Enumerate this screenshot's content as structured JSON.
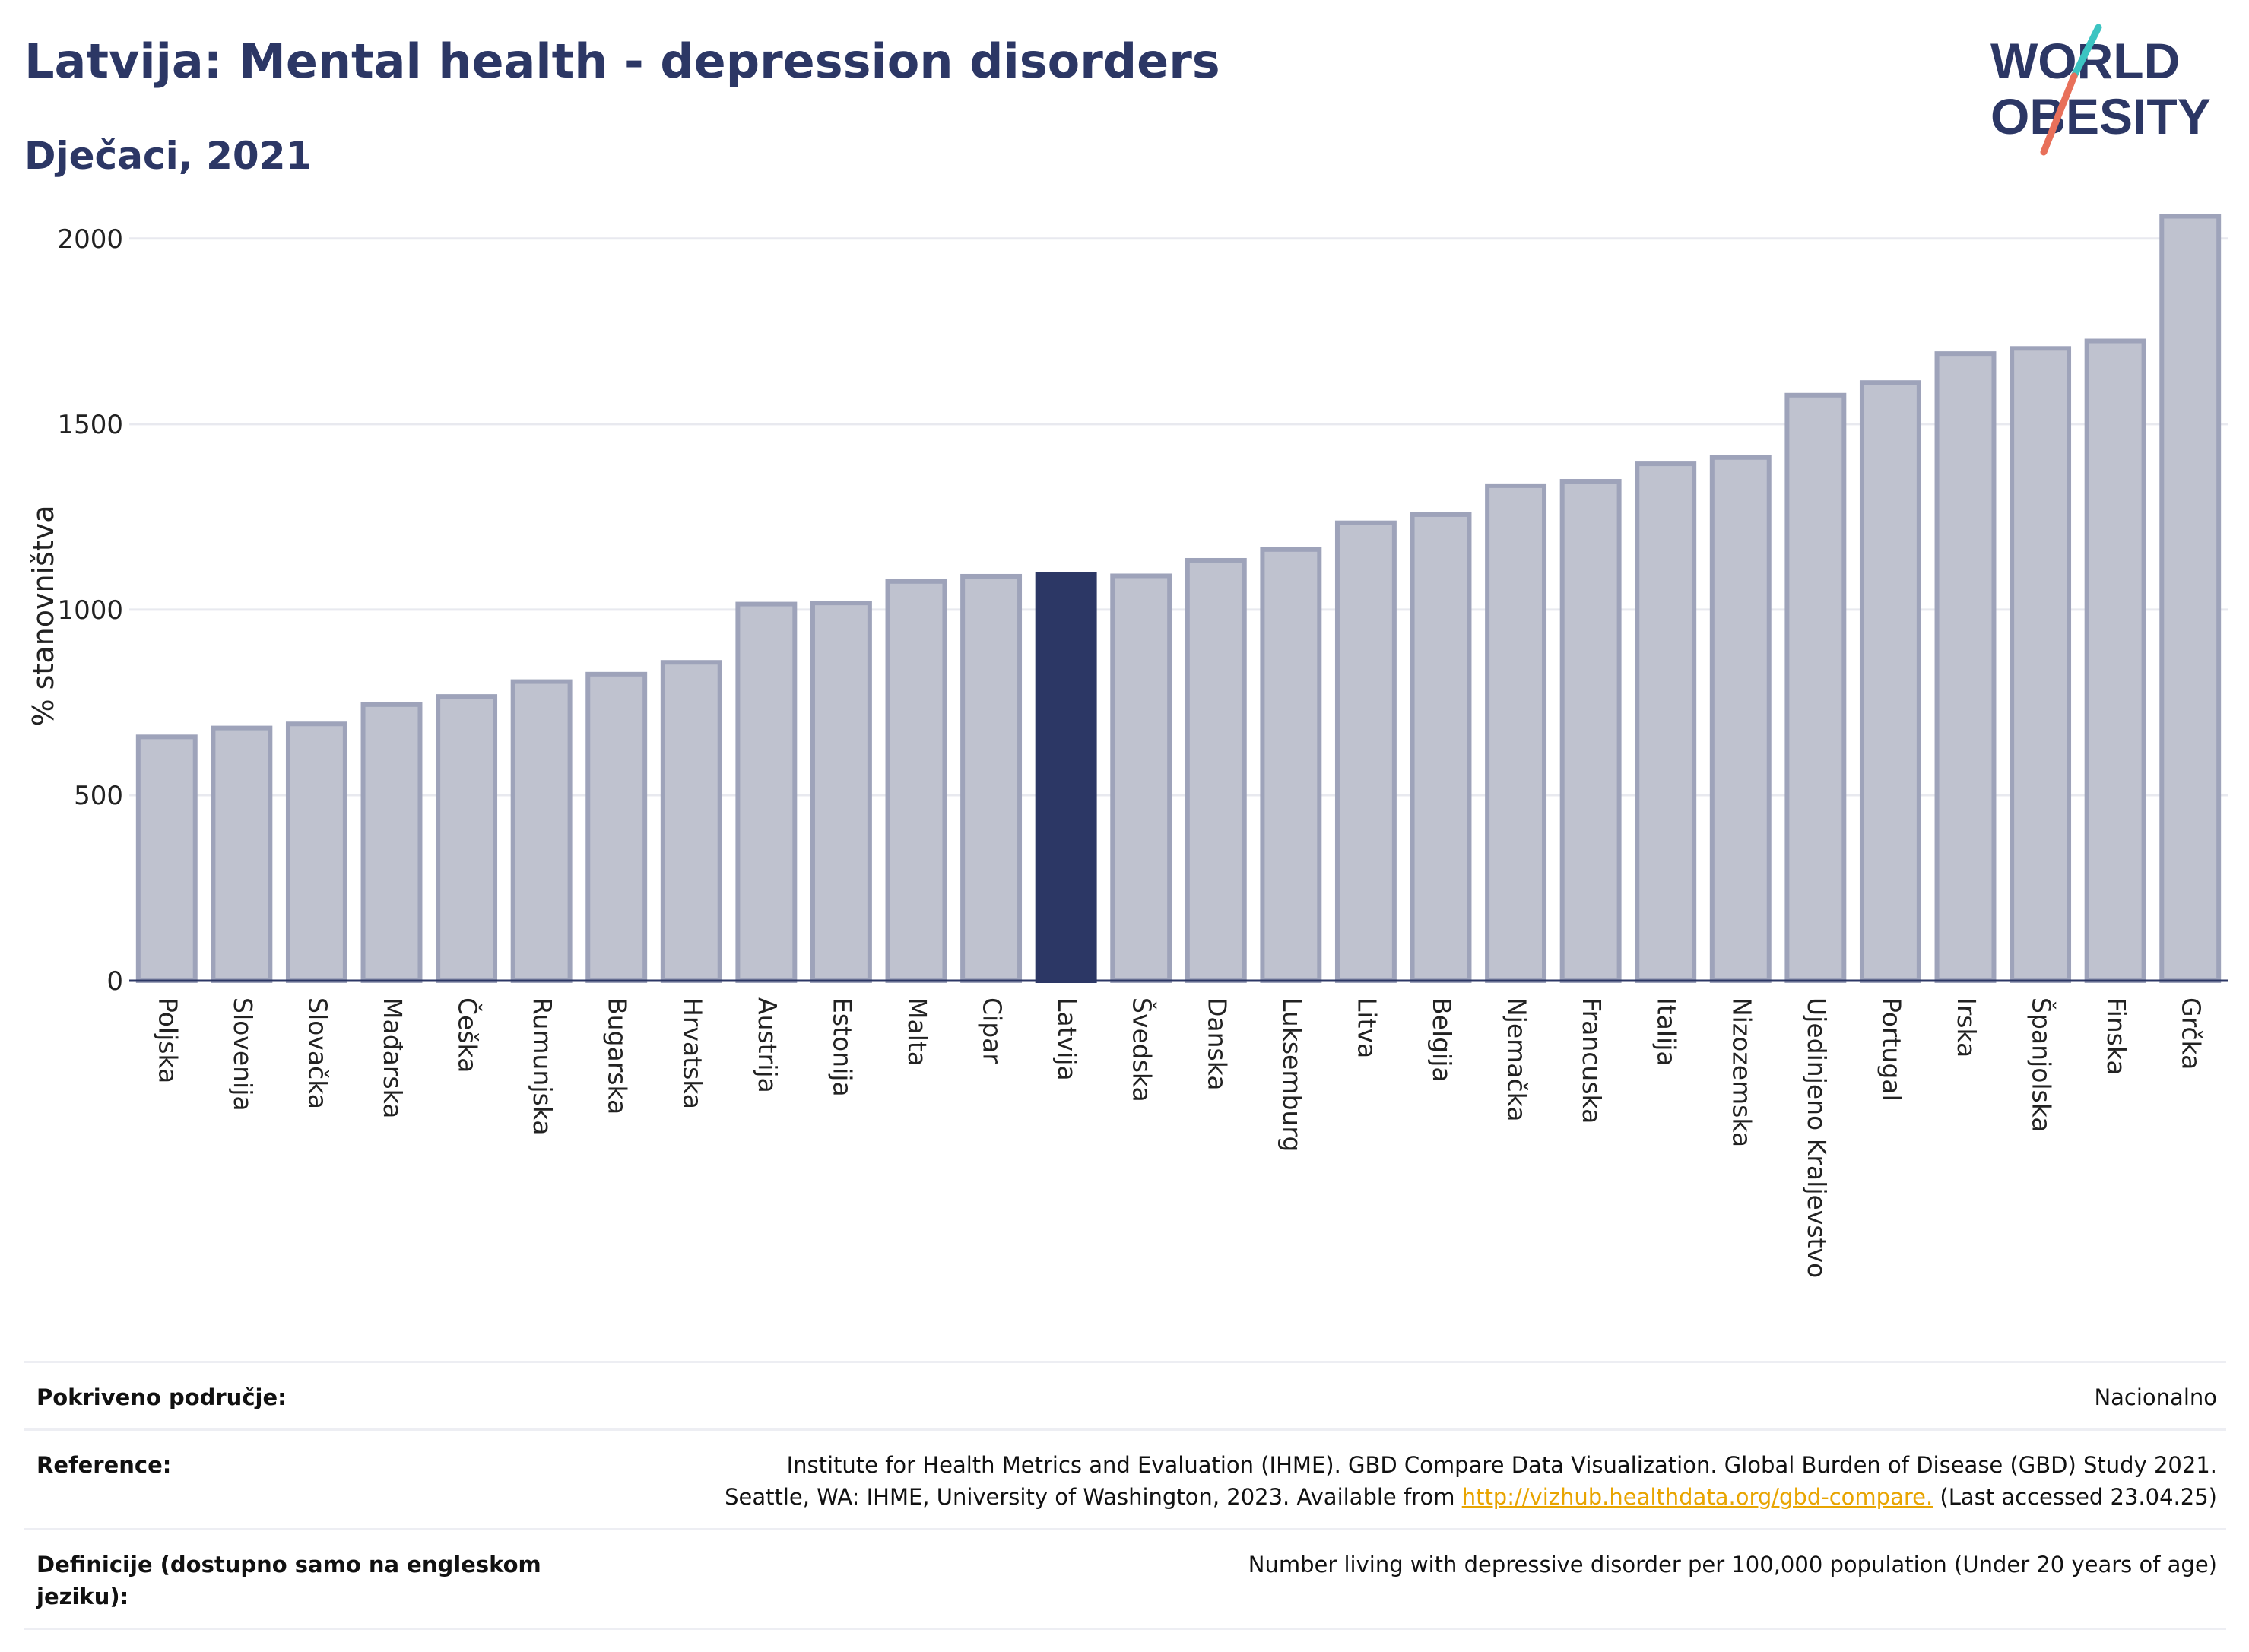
{
  "title": "Latvija: Mental health - depression disorders",
  "subtitle": "Dječaci, 2021",
  "logo": {
    "line1": "WORLD",
    "line2": "OBESITY",
    "slash_colors": [
      "#3cc4c2",
      "#e8705a"
    ]
  },
  "colors": {
    "bar": "#bfc2cf",
    "bar_stroke": "#9ea3ba",
    "highlight": "#2c3765",
    "grid": "#e8e9ef",
    "text": "#2c3765"
  },
  "chart_data": {
    "type": "bar",
    "title": "Latvija: Mental health - depression disorders",
    "subtitle": "Dječaci, 2021",
    "ylabel": "% stanovništva",
    "ylim": [
      0,
      2100
    ],
    "yticks": [
      0,
      500,
      1000,
      1500,
      2000
    ],
    "grid": true,
    "highlight": "Latvija",
    "categories": [
      "Poljska",
      "Slovenija",
      "Slovačka",
      "Mađarska",
      "Češka",
      "Rumunjska",
      "Bugarska",
      "Hrvatska",
      "Austrija",
      "Estonija",
      "Malta",
      "Cipar",
      "Latvija",
      "Švedska",
      "Danska",
      "Luksemburg",
      "Litva",
      "Belgija",
      "Njemačka",
      "Francuska",
      "Italija",
      "Nizozemska",
      "Ujedinjeno Kraljevstvo",
      "Portugal",
      "Irska",
      "Španjolska",
      "Finska",
      "Grčka"
    ],
    "values": [
      657,
      681,
      692,
      744,
      766,
      806,
      826,
      858,
      1015,
      1018,
      1076,
      1090,
      1095,
      1091,
      1133,
      1162,
      1234,
      1256,
      1334,
      1346,
      1393,
      1410,
      1578,
      1612,
      1690,
      1704,
      1724,
      2060
    ]
  },
  "info": [
    {
      "label": "Pokriveno područje:",
      "value": "Nacionalno"
    },
    {
      "label": "Reference:",
      "value_line1": "Institute for Health Metrics and Evaluation (IHME). GBD Compare Data Visualization. Global Burden of Disease (GBD) Study 2021.",
      "value_line2": "Seattle, WA: IHME, University of Washington, 2023. Available from",
      "link": "http://vizhub.healthdata.org/gbd-compare.",
      "value_tail": "(Last accessed 23.04.25)"
    },
    {
      "label": "Definicije (dostupno samo na engleskom jeziku):",
      "value": "Number living with depressive disorder per 100,000 population (Under 20 years of age)"
    }
  ]
}
